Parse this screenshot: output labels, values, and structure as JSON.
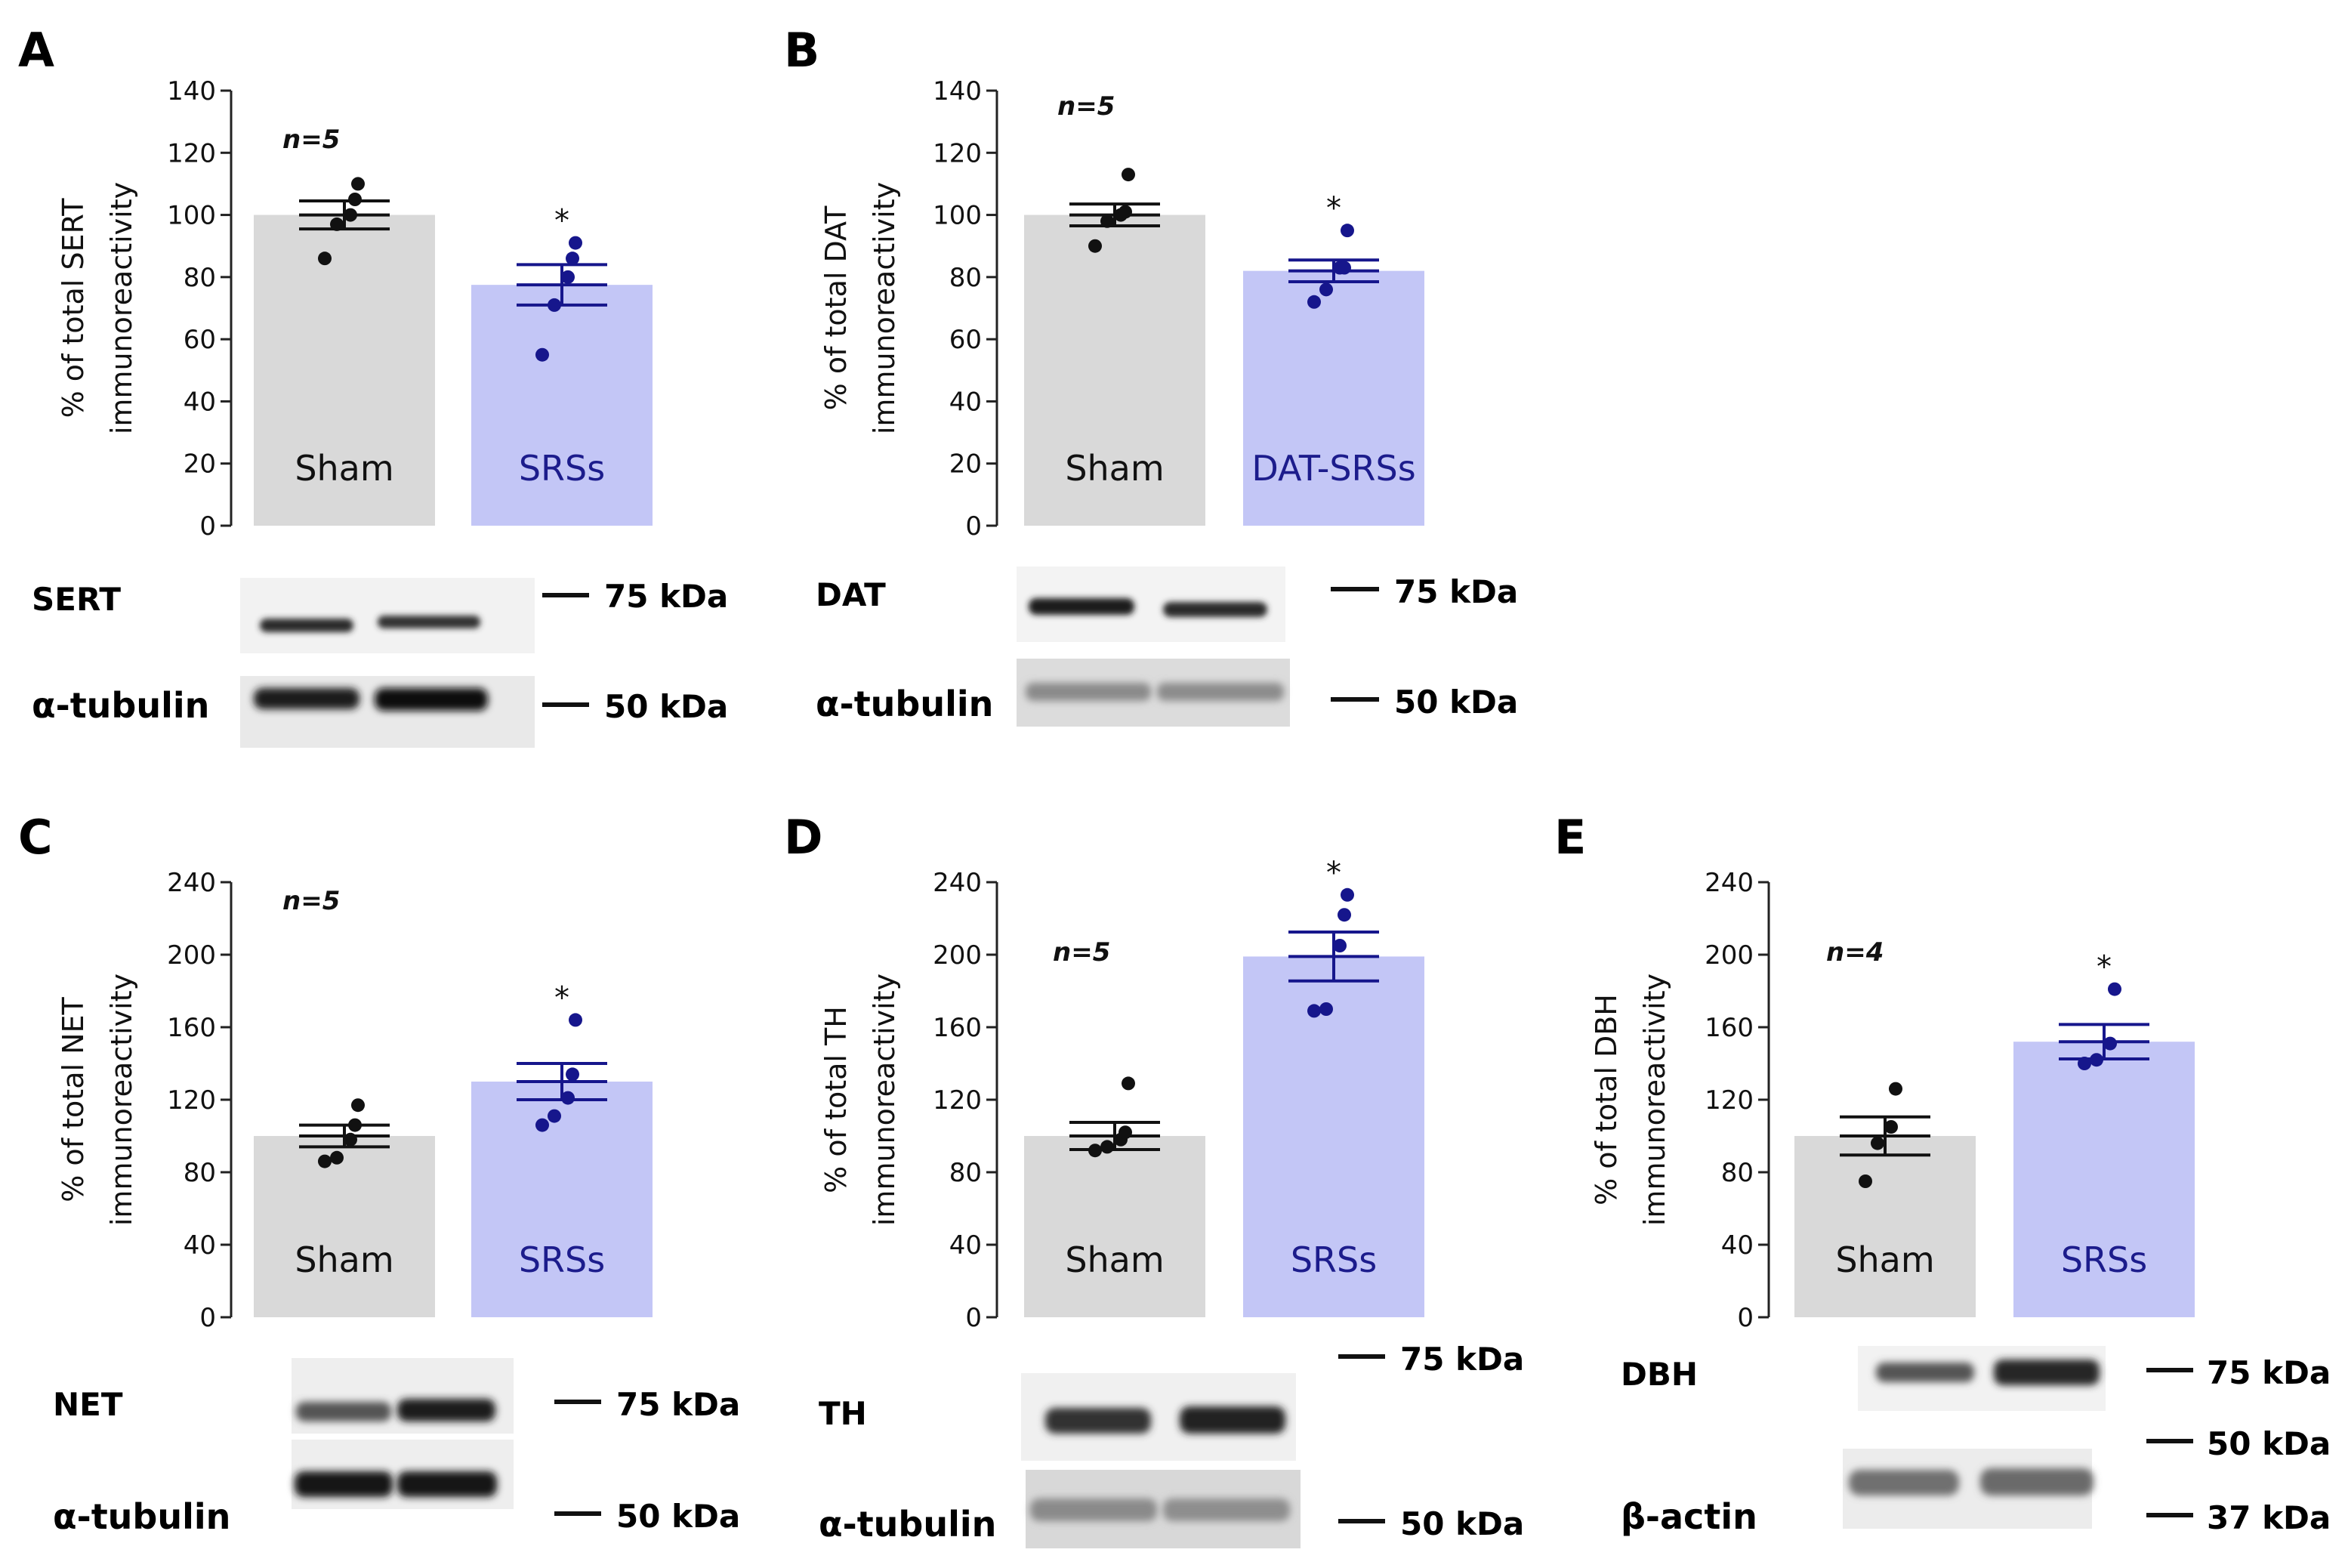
{
  "chart_data": [
    {
      "panel": "A",
      "type": "bar",
      "title": "",
      "categories": [
        "Sham",
        "SRSs"
      ],
      "values": [
        100,
        77.5
      ],
      "sem": [
        4.5,
        6.5
      ],
      "points": [
        [
          86,
          97,
          100,
          105,
          110
        ],
        [
          55,
          71,
          80,
          86,
          91
        ]
      ],
      "ylabel_lines": [
        "% of total SERT",
        "immunoreactivity"
      ],
      "ylim": [
        0,
        140
      ],
      "yticks": [
        0,
        20,
        40,
        60,
        80,
        100,
        120,
        140
      ],
      "n_label": "n=5",
      "sig": [
        "",
        "*"
      ],
      "blot_labels": [
        "SERT",
        "α-tubulin"
      ],
      "kda_labels": [
        "75 kDa",
        "50 kDa"
      ]
    },
    {
      "panel": "B",
      "type": "bar",
      "title": "",
      "categories": [
        "Sham",
        "DAT-SRSs"
      ],
      "values": [
        100,
        82
      ],
      "sem": [
        3.5,
        3.5
      ],
      "points": [
        [
          90,
          98,
          100,
          101,
          113
        ],
        [
          72,
          76,
          83,
          83,
          95
        ]
      ],
      "ylabel_lines": [
        "% of total DAT",
        "immunoreactivity"
      ],
      "ylim": [
        0,
        140
      ],
      "yticks": [
        0,
        20,
        40,
        60,
        80,
        100,
        120,
        140
      ],
      "n_label": "n=5",
      "sig": [
        "",
        "*"
      ],
      "blot_labels": [
        "DAT",
        "α-tubulin"
      ],
      "kda_labels": [
        "75 kDa",
        "50 kDa"
      ]
    },
    {
      "panel": "C",
      "type": "bar",
      "title": "",
      "categories": [
        "Sham",
        "SRSs"
      ],
      "values": [
        100,
        130
      ],
      "sem": [
        6,
        10
      ],
      "points": [
        [
          86,
          88,
          98,
          106,
          117
        ],
        [
          106,
          111,
          121,
          134,
          164
        ]
      ],
      "ylabel_lines": [
        "% of total NET",
        "immunoreactivity"
      ],
      "ylim": [
        0,
        240
      ],
      "yticks": [
        0,
        40,
        80,
        120,
        160,
        200,
        240
      ],
      "n_label": "n=5",
      "sig": [
        "",
        "*"
      ],
      "blot_labels": [
        "NET",
        "α-tubulin"
      ],
      "kda_labels": [
        "75 kDa",
        "50 kDa"
      ]
    },
    {
      "panel": "D",
      "type": "bar",
      "title": "",
      "categories": [
        "Sham",
        "SRSs"
      ],
      "values": [
        100,
        199
      ],
      "sem": [
        7.5,
        13.5
      ],
      "points": [
        [
          92,
          94,
          98,
          102,
          129
        ],
        [
          169,
          170,
          205,
          222,
          233
        ]
      ],
      "ylabel_lines": [
        "% of total TH",
        "immunoreactivity"
      ],
      "ylim": [
        0,
        240
      ],
      "yticks": [
        0,
        40,
        80,
        120,
        160,
        200,
        240
      ],
      "n_label": "n=5",
      "sig": [
        "",
        "*"
      ],
      "blot_labels": [
        "TH",
        "α-tubulin"
      ],
      "kda_labels": [
        "75 kDa",
        "50 kDa"
      ]
    },
    {
      "panel": "E",
      "type": "bar",
      "title": "",
      "categories": [
        "Sham",
        "SRSs"
      ],
      "values": [
        100,
        152
      ],
      "sem": [
        10.5,
        9.5
      ],
      "points": [
        [
          75,
          96,
          105,
          126
        ],
        [
          140,
          142,
          151,
          181
        ]
      ],
      "ylabel_lines": [
        "% of total DBH",
        "immunoreactivity"
      ],
      "ylim": [
        0,
        240
      ],
      "yticks": [
        0,
        40,
        80,
        120,
        160,
        200,
        240
      ],
      "n_label": "n=4",
      "sig": [
        "",
        "*"
      ],
      "blot_labels": [
        "DBH",
        "β-actin"
      ],
      "kda_labels": [
        "75 kDa",
        "50 kDa",
        "37 kDa"
      ]
    }
  ],
  "colors": {
    "sham_bar": "#d9d9d9",
    "srs_bar": "#c3c6f6",
    "sham_point": "#111111",
    "srs_point": "#16168c",
    "srs_text": "#1c1c8c",
    "axis": "#222222"
  }
}
